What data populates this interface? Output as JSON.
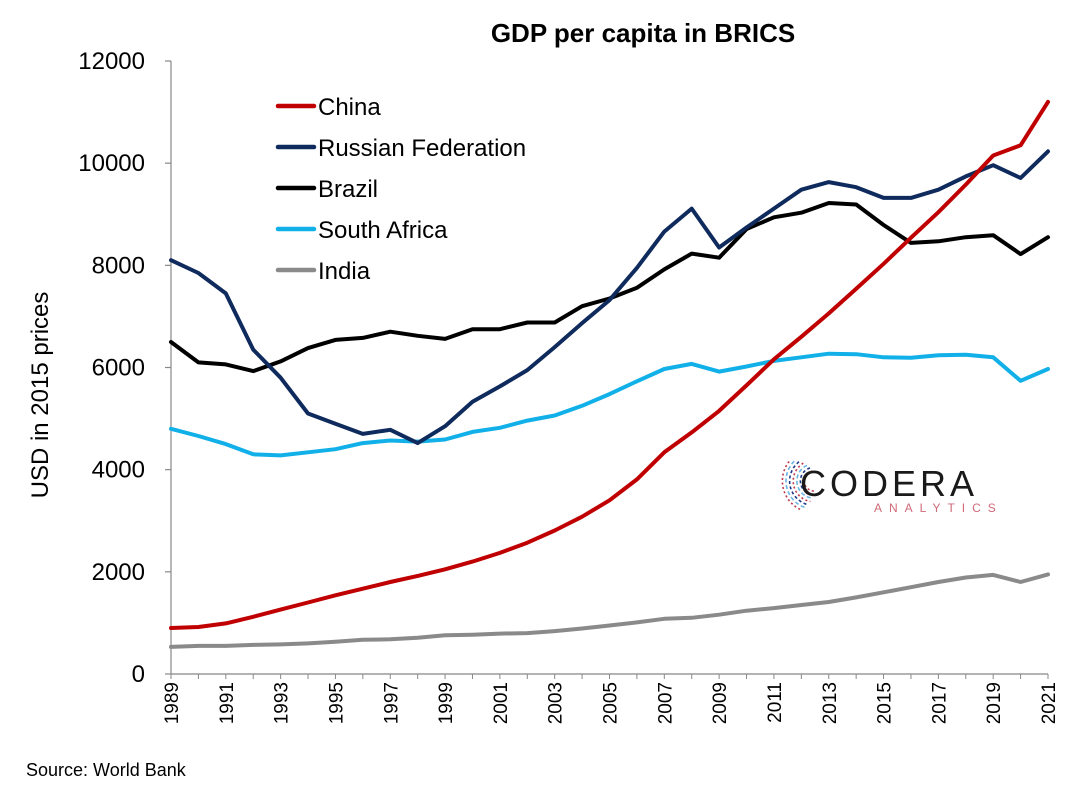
{
  "chart_data": {
    "type": "line",
    "title": "GDP per capita in BRICS",
    "ylabel": "USD in 2015 prices",
    "xlabel": "",
    "ylim": [
      0,
      12000
    ],
    "yticks": [
      0,
      2000,
      4000,
      6000,
      8000,
      10000,
      12000
    ],
    "xlim": [
      1989,
      2021
    ],
    "xticks": [
      1989,
      1991,
      1993,
      1995,
      1997,
      1999,
      2001,
      2003,
      2005,
      2007,
      2009,
      2011,
      2013,
      2015,
      2017,
      2019,
      2021
    ],
    "grid": false,
    "legend_position": "top-left",
    "x": [
      1989,
      1990,
      1991,
      1992,
      1993,
      1994,
      1995,
      1996,
      1997,
      1998,
      1999,
      2000,
      2001,
      2002,
      2003,
      2004,
      2005,
      2006,
      2007,
      2008,
      2009,
      2010,
      2011,
      2012,
      2013,
      2014,
      2015,
      2016,
      2017,
      2018,
      2019,
      2020,
      2021
    ],
    "series": [
      {
        "name": "China",
        "color": "#c00000",
        "values": [
          900,
          920,
          990,
          1120,
          1260,
          1400,
          1540,
          1670,
          1800,
          1920,
          2050,
          2200,
          2370,
          2570,
          2810,
          3080,
          3400,
          3810,
          4340,
          4730,
          5150,
          5650,
          6160,
          6600,
          7060,
          7540,
          8030,
          8540,
          9040,
          9580,
          10150,
          10350,
          11200
        ]
      },
      {
        "name": "Russian Federation",
        "color": "#0f2a5c",
        "values": [
          8100,
          7850,
          7450,
          6350,
          5800,
          5100,
          4900,
          4700,
          4780,
          4520,
          4850,
          5330,
          5630,
          5950,
          6400,
          6870,
          7320,
          7950,
          8660,
          9110,
          8350,
          8740,
          9110,
          9480,
          9630,
          9530,
          9320,
          9320,
          9480,
          9740,
          9960,
          9710,
          10230
        ]
      },
      {
        "name": "Brazil",
        "color": "#000000",
        "values": [
          6500,
          6100,
          6060,
          5930,
          6120,
          6380,
          6540,
          6580,
          6700,
          6620,
          6560,
          6750,
          6750,
          6880,
          6880,
          7200,
          7350,
          7560,
          7920,
          8230,
          8150,
          8710,
          8940,
          9030,
          9220,
          9190,
          8790,
          8440,
          8470,
          8550,
          8590,
          8220,
          8550
        ]
      },
      {
        "name": "South Africa",
        "color": "#12b0e8",
        "values": [
          4800,
          4660,
          4500,
          4300,
          4280,
          4340,
          4400,
          4520,
          4570,
          4550,
          4590,
          4740,
          4820,
          4960,
          5060,
          5250,
          5480,
          5730,
          5970,
          6070,
          5920,
          6020,
          6130,
          6200,
          6270,
          6260,
          6200,
          6190,
          6240,
          6250,
          6200,
          5740,
          5970
        ]
      },
      {
        "name": "India",
        "color": "#8a8a8a",
        "values": [
          530,
          550,
          550,
          570,
          580,
          600,
          630,
          670,
          680,
          710,
          760,
          770,
          790,
          800,
          840,
          890,
          950,
          1010,
          1080,
          1100,
          1160,
          1240,
          1290,
          1350,
          1410,
          1500,
          1600,
          1700,
          1800,
          1890,
          1940,
          1800,
          1950
        ]
      }
    ]
  },
  "source_text": "Source: World Bank",
  "logo": {
    "main": "CODERA",
    "sub": "ANALYTICS",
    "colors": {
      "text": "#1a1a1a",
      "sub": "#d06a78",
      "rings": [
        "#c0394b",
        "#1f3a8a",
        "#6bb5e6"
      ]
    }
  }
}
